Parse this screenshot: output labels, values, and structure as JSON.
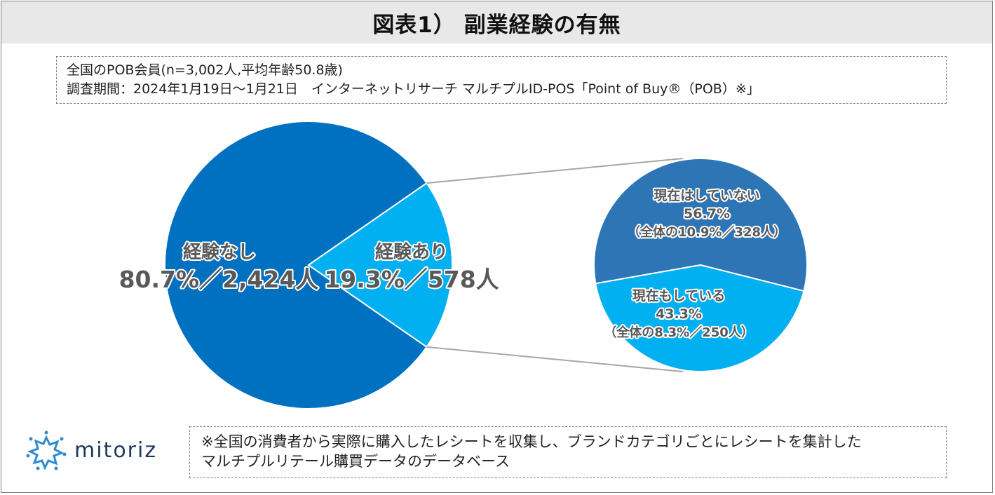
{
  "title": "図表1） 副業経験の有無",
  "info": {
    "line1": "全国のPOB会員(n=3,002人,平均年齢50.8歳)",
    "line2": "調査期間：2024年1月19日〜1月21日　インターネットリサーチ マルチプルID-POS「Point of Buy®（POB）※」"
  },
  "note": {
    "line1": "※全国の消費者から実際に購入したレシートを収集し、ブランドカテゴリごとにレシートを集計した",
    "line2": "マルチプルリテール購買データのデータベース"
  },
  "logo": {
    "text": "mitoriz",
    "icon": "sun-burst-logo-icon"
  },
  "colors": {
    "dark_blue": "#0070c0",
    "light_blue": "#00b0f0",
    "sub_dark": "#2e75b6",
    "connector": "#a6a6a6",
    "label_text": "#595959"
  },
  "chart_data": [
    {
      "type": "pie",
      "slices": [
        {
          "label": "経験なし",
          "value": 80.7,
          "count": 2424,
          "value_label": "80.7%／2,424人"
        },
        {
          "label": "経験あり",
          "value": 19.3,
          "count": 578,
          "value_label": "19.3%／578人"
        }
      ]
    },
    {
      "type": "pie",
      "slices": [
        {
          "label": "現在はしていない",
          "value": 56.7,
          "value_label": "56.7%",
          "detail": "（全体の10.9%／328人）"
        },
        {
          "label": "現在もしている",
          "value": 43.3,
          "value_label": "43.3%",
          "detail": "（全体の8.3%／250人）"
        }
      ]
    }
  ]
}
